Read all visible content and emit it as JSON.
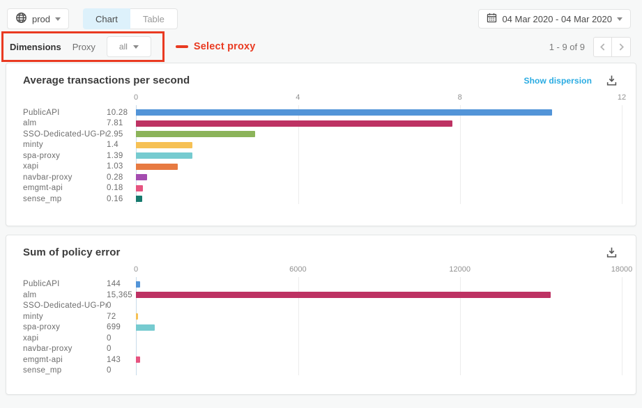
{
  "header": {
    "env_button": {
      "label": "prod"
    },
    "tabs": [
      {
        "label": "Chart"
      },
      {
        "label": "Table"
      }
    ],
    "date_range_label": "04 Mar 2020 - 04 Mar 2020"
  },
  "filter_bar": {
    "dimensions_label": "Dimensions",
    "proxy_label": "Proxy",
    "proxy_dropdown_value": "all",
    "annotation_label": "Select proxy",
    "pagination_label": "1 - 9 of 9"
  },
  "colors": {
    "annotation_red": "#e93a21",
    "link_blue": "#29abe2",
    "active_tab_bg": "#ddf1fb"
  },
  "chart_data": [
    {
      "type": "bar",
      "orientation": "horizontal",
      "title": "Average transactions per second",
      "dispersion_link": "Show dispersion",
      "xlim": [
        0,
        12
      ],
      "x_ticks": [
        "0",
        "4",
        "8",
        "12"
      ],
      "categories": [
        "PublicAPI",
        "alm",
        "SSO-Dedicated-UG-Pr…",
        "minty",
        "spa-proxy",
        "xapi",
        "navbar-proxy",
        "emgmt-api",
        "sense_mp"
      ],
      "values": [
        10.28,
        7.81,
        2.95,
        1.4,
        1.39,
        1.03,
        0.28,
        0.18,
        0.16
      ],
      "value_labels": [
        "10.28",
        "7.81",
        "2.95",
        "1.4",
        "1.39",
        "1.03",
        "0.28",
        "0.18",
        "0.16"
      ],
      "colors": [
        "#5294d8",
        "#bd3263",
        "#8cb45a",
        "#f6c155",
        "#76cbd0",
        "#e77a41",
        "#a44cb0",
        "#e65480",
        "#177a6e"
      ]
    },
    {
      "type": "bar",
      "orientation": "horizontal",
      "title": "Sum of policy error",
      "xlim": [
        0,
        18000
      ],
      "x_ticks": [
        "0",
        "6000",
        "12000",
        "18000"
      ],
      "categories": [
        "PublicAPI",
        "alm",
        "SSO-Dedicated-UG-Pr…",
        "minty",
        "spa-proxy",
        "xapi",
        "navbar-proxy",
        "emgmt-api",
        "sense_mp"
      ],
      "values": [
        144,
        15365,
        0,
        72,
        699,
        0,
        0,
        143,
        0
      ],
      "value_labels": [
        "144",
        "15,365",
        "0",
        "72",
        "699",
        "0",
        "0",
        "143",
        "0"
      ],
      "colors": [
        "#5294d8",
        "#bd3263",
        "#8cb45a",
        "#f6c155",
        "#76cbd0",
        "#e77a41",
        "#a44cb0",
        "#e65480",
        "#177a6e"
      ]
    }
  ]
}
